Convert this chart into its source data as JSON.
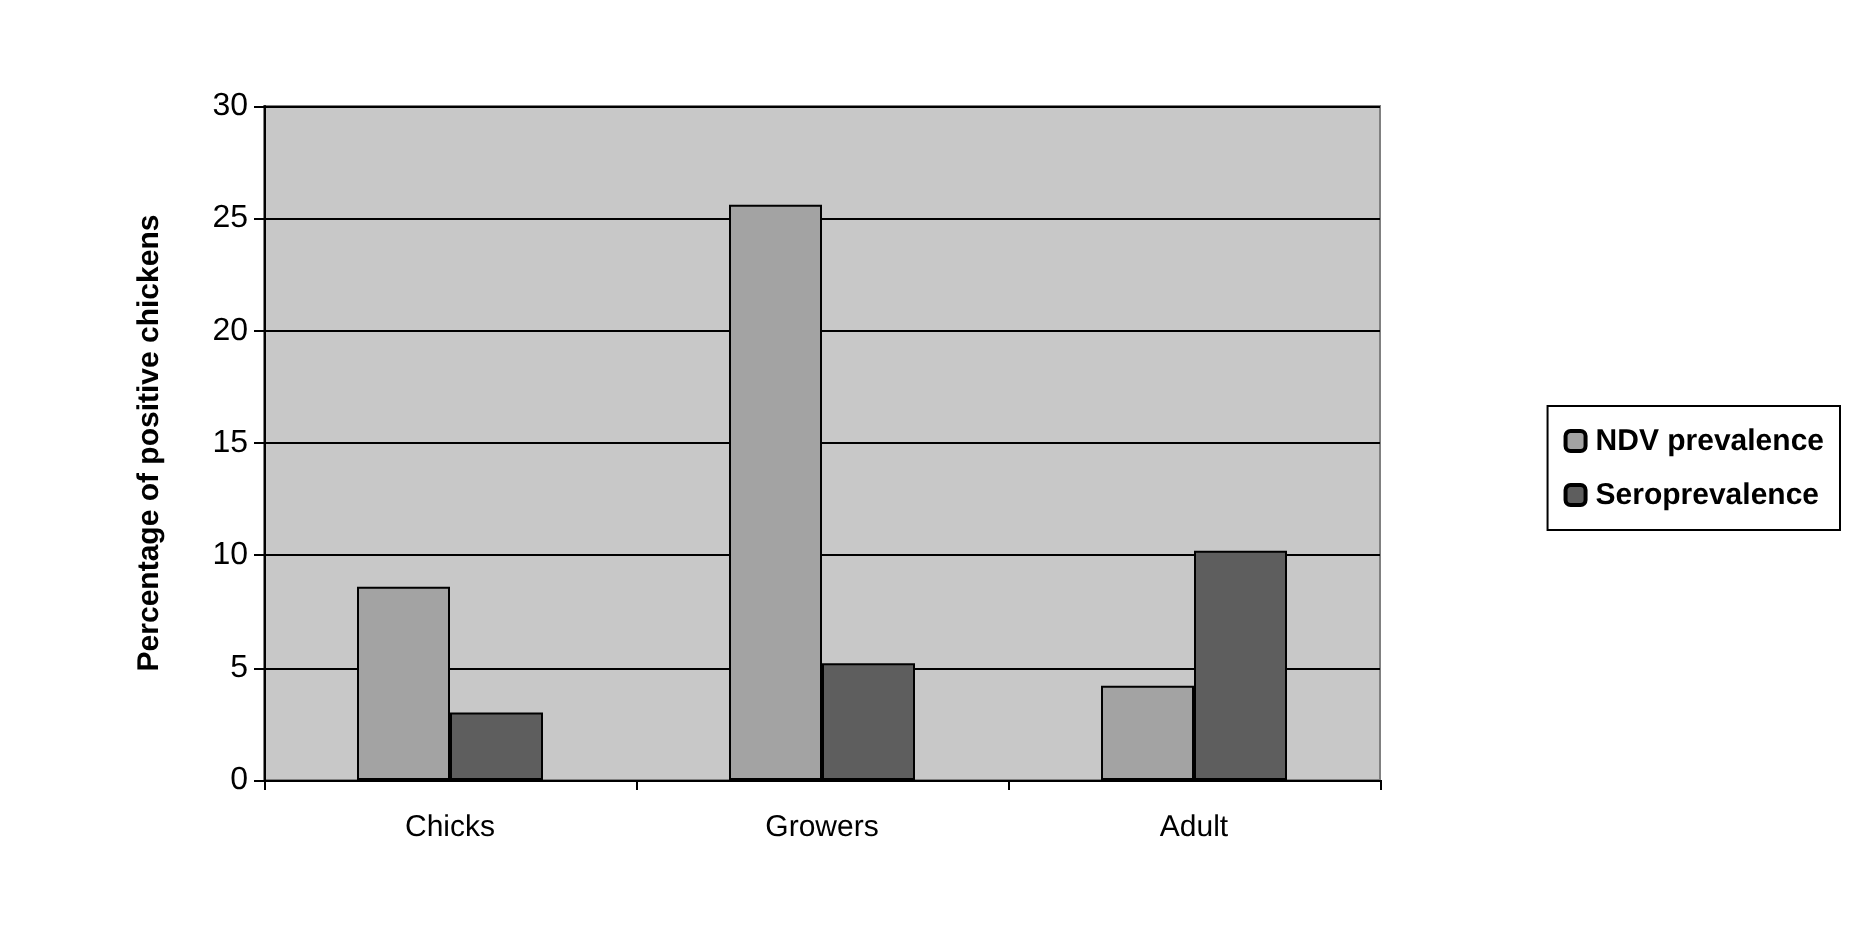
{
  "chart_data": {
    "type": "bar",
    "ylabel": "Percentage of positive chickens",
    "categories": [
      "Chicks",
      "Growers",
      "Adult"
    ],
    "series": [
      {
        "name": "NDV prevalence",
        "color": "#a3a3a3",
        "values": [
          8.6,
          25.6,
          4.2
        ]
      },
      {
        "name": "Seroprevalence",
        "color": "#5e5e5e",
        "values": [
          3.0,
          5.2,
          10.2
        ]
      }
    ],
    "ylim": [
      0,
      30
    ],
    "yticks": [
      0,
      5,
      10,
      15,
      20,
      25,
      30
    ],
    "grid": "y",
    "legend": "right"
  }
}
